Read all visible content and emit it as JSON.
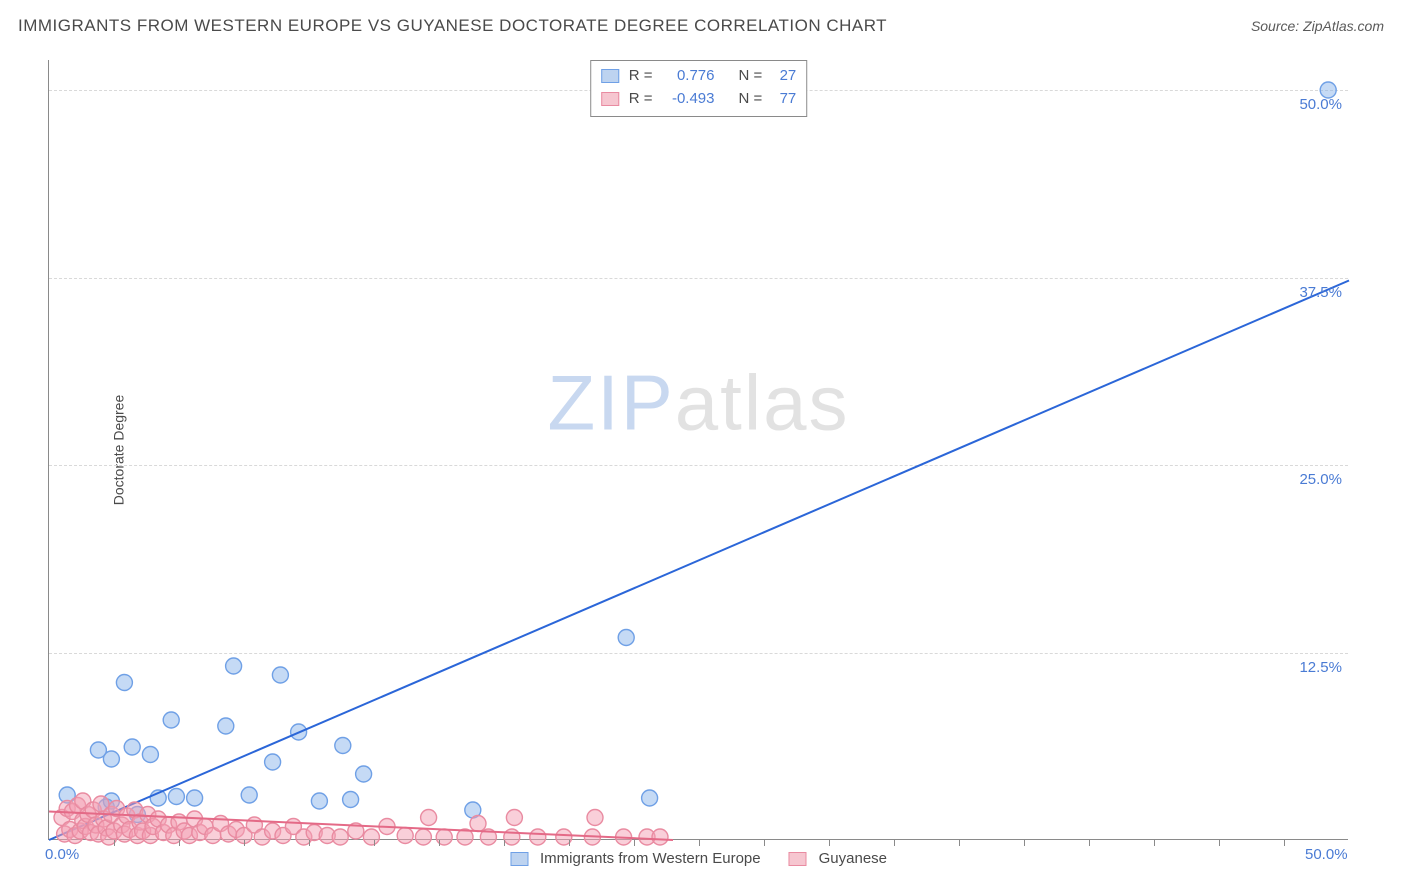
{
  "header": {
    "title": "IMMIGRANTS FROM WESTERN EUROPE VS GUYANESE DOCTORATE DEGREE CORRELATION CHART",
    "source_prefix": "Source: ",
    "source_name": "ZipAtlas.com"
  },
  "watermark": {
    "part1": "ZIP",
    "part2": "atlas"
  },
  "chart": {
    "type": "scatter",
    "y_axis_title": "Doctorate Degree",
    "background_color": "#ffffff",
    "grid_color": "#d9d9d9",
    "axis_color": "#8a8a8a",
    "tick_label_color": "#4a7bd4",
    "xlim": [
      0,
      50
    ],
    "ylim": [
      0,
      52
    ],
    "x_ticks": [
      {
        "v": 0,
        "label": "0.0%"
      },
      {
        "v": 50,
        "label": "50.0%"
      }
    ],
    "y_ticks": [
      {
        "v": 12.5,
        "label": "12.5%"
      },
      {
        "v": 25,
        "label": "25.0%"
      },
      {
        "v": 37.5,
        "label": "37.5%"
      },
      {
        "v": 50,
        "label": "50.0%"
      }
    ],
    "x_minor_step": 2.5,
    "marker_radius": 8,
    "line_width": 2,
    "stats_legend": [
      {
        "swatch_fill": "#bdd3f0",
        "swatch_stroke": "#6fa0e6",
        "r_label": "R =",
        "r_value": "0.776",
        "n_label": "N =",
        "n_value": "27"
      },
      {
        "swatch_fill": "#f6c6d0",
        "swatch_stroke": "#e98ba1",
        "r_label": "R =",
        "r_value": "-0.493",
        "n_label": "N =",
        "n_value": "77"
      }
    ],
    "bottom_legend": [
      {
        "swatch_fill": "#bdd3f0",
        "swatch_stroke": "#6fa0e6",
        "label": "Immigrants from Western Europe"
      },
      {
        "swatch_fill": "#f6c6d0",
        "swatch_stroke": "#e98ba1",
        "label": "Guyanese"
      }
    ],
    "series": [
      {
        "name": "Immigrants from Western Europe",
        "color_fill": "rgba(127,172,232,0.45)",
        "color_stroke": "#6fa0e6",
        "trend": {
          "x1": 0,
          "y1": 0,
          "x2": 50,
          "y2": 37.3,
          "color": "#2b66d8"
        },
        "points": [
          [
            0.7,
            3.0
          ],
          [
            1.9,
            6.0
          ],
          [
            2.2,
            2.2
          ],
          [
            2.4,
            5.4
          ],
          [
            2.4,
            2.6
          ],
          [
            2.9,
            10.5
          ],
          [
            3.2,
            6.2
          ],
          [
            3.4,
            1.7
          ],
          [
            3.9,
            5.7
          ],
          [
            4.2,
            2.8
          ],
          [
            4.7,
            8.0
          ],
          [
            4.9,
            2.9
          ],
          [
            5.6,
            2.8
          ],
          [
            6.8,
            7.6
          ],
          [
            7.1,
            11.6
          ],
          [
            7.7,
            3.0
          ],
          [
            8.6,
            5.2
          ],
          [
            8.9,
            11.0
          ],
          [
            9.6,
            7.2
          ],
          [
            10.4,
            2.6
          ],
          [
            11.3,
            6.3
          ],
          [
            11.6,
            2.7
          ],
          [
            12.1,
            4.4
          ],
          [
            16.3,
            2.0
          ],
          [
            22.2,
            13.5
          ],
          [
            23.1,
            2.8
          ],
          [
            49.2,
            50.0
          ]
        ]
      },
      {
        "name": "Guyanese",
        "color_fill": "rgba(244,160,180,0.50)",
        "color_stroke": "#e98ba1",
        "trend": {
          "x1": 0,
          "y1": 1.9,
          "x2": 24,
          "y2": 0.0,
          "color": "#e46a87"
        },
        "points": [
          [
            0.5,
            1.5
          ],
          [
            0.6,
            0.4
          ],
          [
            0.7,
            2.1
          ],
          [
            0.8,
            0.7
          ],
          [
            0.9,
            1.9
          ],
          [
            1.0,
            0.3
          ],
          [
            1.1,
            2.3
          ],
          [
            1.2,
            0.6
          ],
          [
            1.3,
            1.3
          ],
          [
            1.3,
            2.6
          ],
          [
            1.4,
            0.9
          ],
          [
            1.5,
            1.7
          ],
          [
            1.6,
            0.5
          ],
          [
            1.7,
            2.0
          ],
          [
            1.8,
            1.0
          ],
          [
            1.9,
            0.4
          ],
          [
            2.0,
            2.4
          ],
          [
            2.1,
            1.4
          ],
          [
            2.2,
            0.8
          ],
          [
            2.3,
            0.2
          ],
          [
            2.4,
            1.7
          ],
          [
            2.5,
            0.6
          ],
          [
            2.6,
            2.1
          ],
          [
            2.8,
            1.0
          ],
          [
            2.9,
            0.4
          ],
          [
            3.0,
            1.6
          ],
          [
            3.1,
            0.7
          ],
          [
            3.3,
            2.0
          ],
          [
            3.4,
            0.3
          ],
          [
            3.5,
            1.2
          ],
          [
            3.6,
            0.6
          ],
          [
            3.8,
            1.7
          ],
          [
            3.9,
            0.3
          ],
          [
            4.0,
            0.9
          ],
          [
            4.2,
            1.4
          ],
          [
            4.4,
            0.5
          ],
          [
            4.6,
            1.0
          ],
          [
            4.8,
            0.3
          ],
          [
            5.0,
            1.2
          ],
          [
            5.2,
            0.6
          ],
          [
            5.4,
            0.3
          ],
          [
            5.6,
            1.4
          ],
          [
            5.8,
            0.5
          ],
          [
            6.0,
            0.9
          ],
          [
            6.3,
            0.3
          ],
          [
            6.6,
            1.1
          ],
          [
            6.9,
            0.4
          ],
          [
            7.2,
            0.7
          ],
          [
            7.5,
            0.3
          ],
          [
            7.9,
            1.0
          ],
          [
            8.2,
            0.2
          ],
          [
            8.6,
            0.6
          ],
          [
            9.0,
            0.3
          ],
          [
            9.4,
            0.9
          ],
          [
            9.8,
            0.2
          ],
          [
            10.2,
            0.5
          ],
          [
            10.7,
            0.3
          ],
          [
            11.2,
            0.2
          ],
          [
            11.8,
            0.6
          ],
          [
            12.4,
            0.2
          ],
          [
            13.0,
            0.9
          ],
          [
            13.7,
            0.3
          ],
          [
            14.4,
            0.2
          ],
          [
            14.6,
            1.5
          ],
          [
            15.2,
            0.2
          ],
          [
            16.0,
            0.2
          ],
          [
            16.5,
            1.1
          ],
          [
            16.9,
            0.2
          ],
          [
            17.8,
            0.2
          ],
          [
            17.9,
            1.5
          ],
          [
            18.8,
            0.2
          ],
          [
            19.8,
            0.2
          ],
          [
            20.9,
            0.2
          ],
          [
            21.0,
            1.5
          ],
          [
            22.1,
            0.2
          ],
          [
            23.0,
            0.2
          ],
          [
            23.5,
            0.2
          ]
        ]
      }
    ]
  }
}
